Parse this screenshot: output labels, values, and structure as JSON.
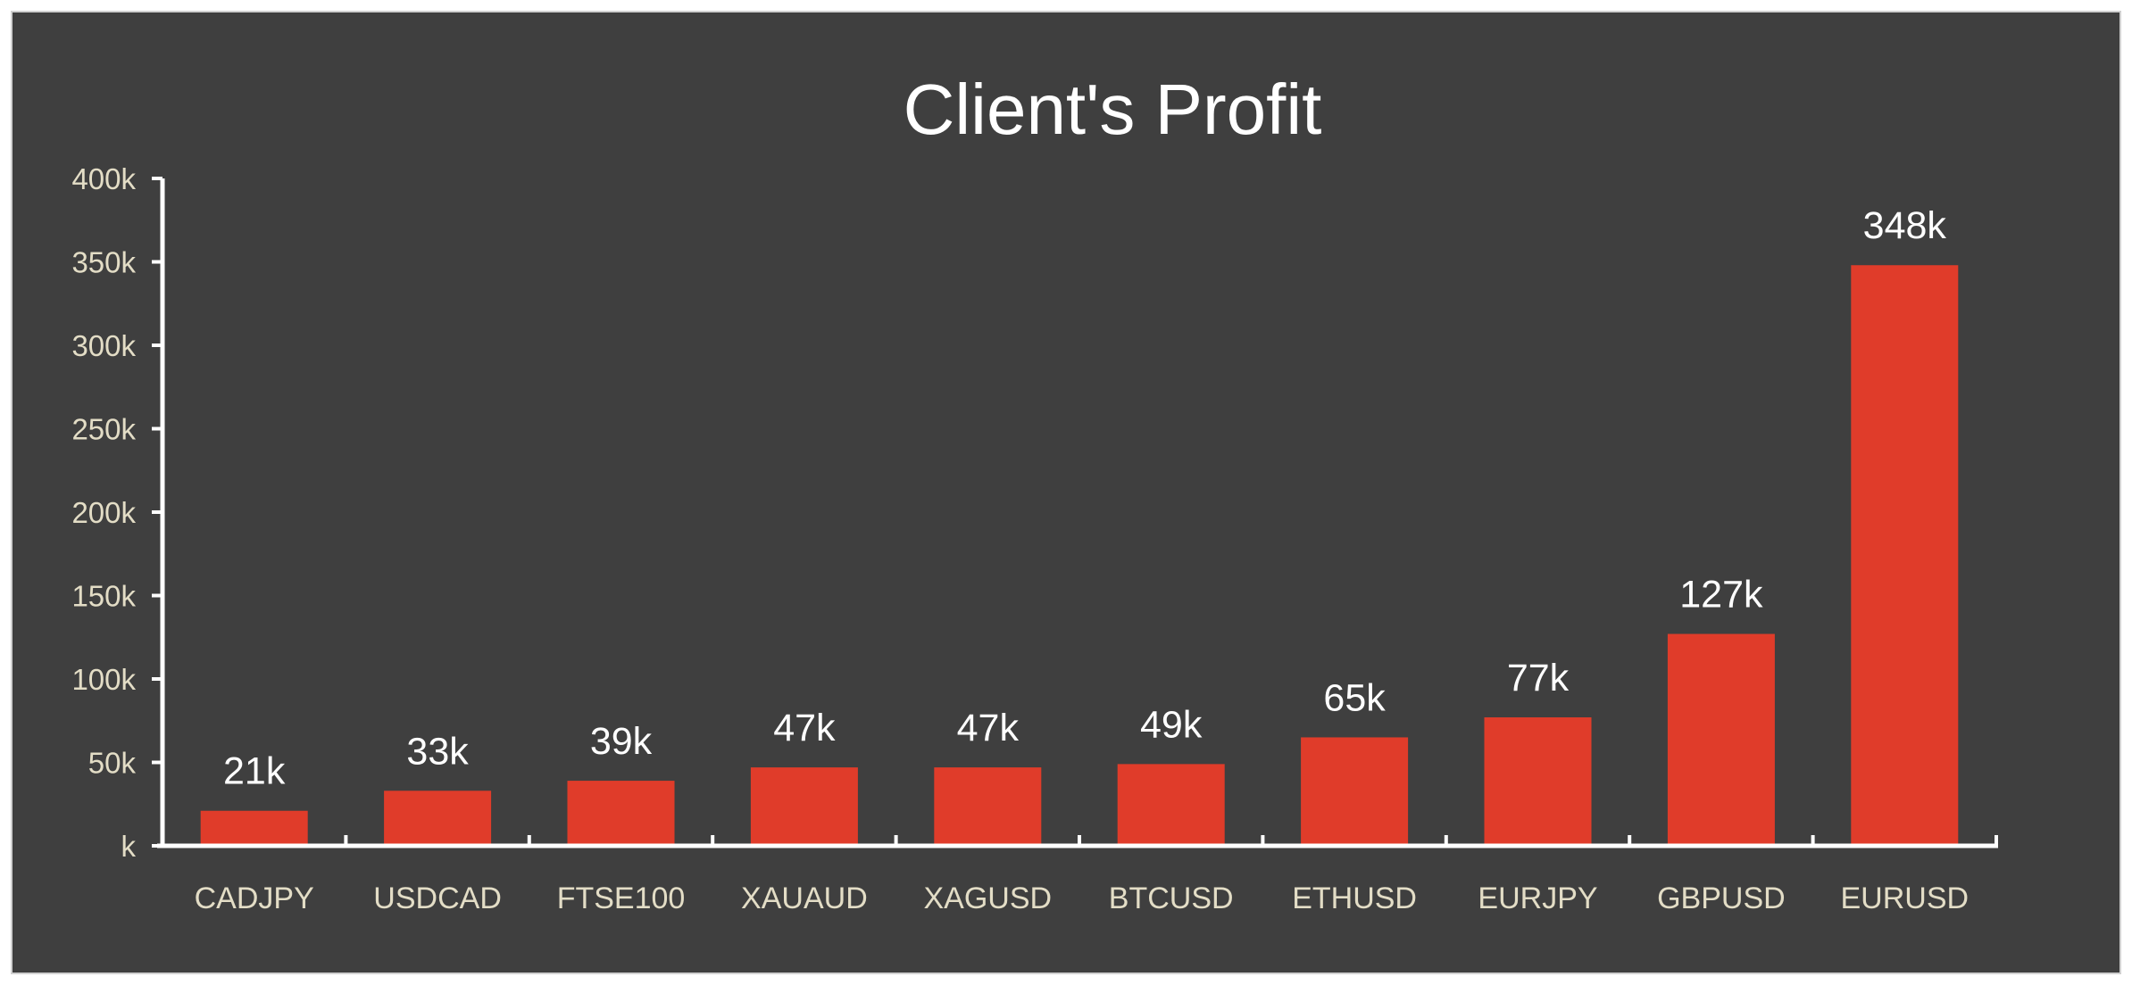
{
  "chart_data": {
    "type": "bar",
    "title": "Client's Profit",
    "xlabel": "",
    "ylabel": "",
    "categories": [
      "CADJPY",
      "USDCAD",
      "FTSE100",
      "XAUAUD",
      "XAGUSD",
      "BTCUSD",
      "ETHUSD",
      "EURJPY",
      "GBPUSD",
      "EURUSD"
    ],
    "values": [
      21,
      33,
      39,
      47,
      47,
      49,
      65,
      77,
      127,
      348
    ],
    "value_labels": [
      "21k",
      "33k",
      "39k",
      "47k",
      "47k",
      "49k",
      "65k",
      "77k",
      "127k",
      "348k"
    ],
    "yticks": [
      0,
      50,
      100,
      150,
      200,
      250,
      300,
      350,
      400
    ],
    "ytick_labels": [
      "k",
      "50k",
      "100k",
      "150k",
      "200k",
      "250k",
      "300k",
      "350k",
      "400k"
    ],
    "ylim": [
      0,
      400
    ],
    "grid": false,
    "legend": "none",
    "colors": {
      "background": "#3f3f3f",
      "bar": "#e03c2a",
      "axis": "#ffffff"
    }
  }
}
